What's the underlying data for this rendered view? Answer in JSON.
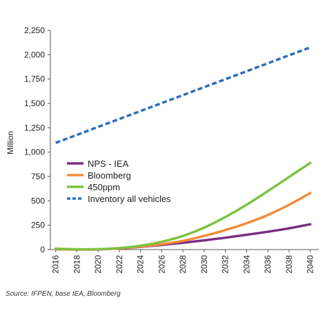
{
  "chart_data": {
    "type": "line",
    "title": "",
    "xlabel": "",
    "ylabel": "Million",
    "x_ticks": [
      "2016",
      "2018",
      "2020",
      "2022",
      "2024",
      "2026",
      "2028",
      "2030",
      "2032",
      "2034",
      "2036",
      "2038",
      "2040"
    ],
    "y_ticks": [
      "0",
      "250",
      "500",
      "750",
      "1,000",
      "1,250",
      "1,500",
      "1,750",
      "2,000",
      "2,250"
    ],
    "xlim": [
      2015.5,
      2040.8
    ],
    "ylim": [
      0,
      2250
    ],
    "grid": false,
    "legend_position": "center-left",
    "series": [
      {
        "name": "NPS - IEA",
        "color": "#7b2c83",
        "dash": false,
        "x": [
          2016,
          2018,
          2020,
          2022,
          2024,
          2026,
          2028,
          2030,
          2032,
          2034,
          2036,
          2038,
          2040
        ],
        "y": [
          3,
          1,
          2,
          12,
          28,
          48,
          70,
          95,
          122,
          152,
          183,
          218,
          260
        ]
      },
      {
        "name": "Bloomberg",
        "color": "#f28c3a",
        "dash": false,
        "x": [
          2016,
          2018,
          2020,
          2022,
          2024,
          2026,
          2028,
          2030,
          2032,
          2034,
          2036,
          2038,
          2040
        ],
        "y": [
          3,
          1,
          3,
          13,
          30,
          55,
          90,
          140,
          200,
          270,
          355,
          460,
          580
        ]
      },
      {
        "name": "450ppm",
        "color": "#7dc242",
        "dash": false,
        "x": [
          2016,
          2018,
          2020,
          2022,
          2024,
          2026,
          2028,
          2030,
          2032,
          2034,
          2036,
          2038,
          2040
        ],
        "y": [
          10,
          3,
          4,
          16,
          40,
          80,
          140,
          225,
          335,
          460,
          600,
          745,
          890
        ]
      },
      {
        "name": "Inventory all vehicles",
        "color": "#2a6ebb",
        "dash": true,
        "x": [
          2016,
          2040
        ],
        "y": [
          1095,
          2075
        ]
      }
    ]
  },
  "source_note": "Source: IFPEN, base IEA, Bloomberg"
}
